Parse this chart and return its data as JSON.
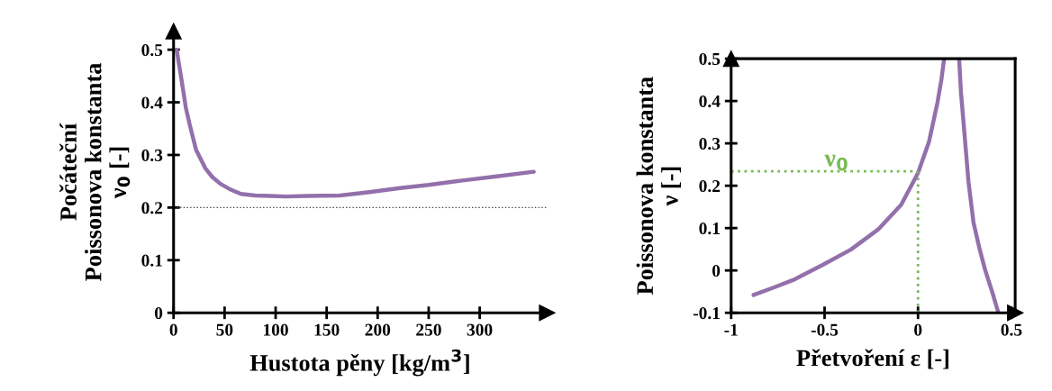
{
  "chart_data": [
    {
      "type": "line",
      "xlabel": "Hustota pěny [kg/m$^{3}$]",
      "ylabel": "Počáteční\nPoissonova konstanta\nν$_{0}$ [-]",
      "xlim": [
        0,
        366
      ],
      "ylim": [
        0,
        0.535
      ],
      "xticks": [
        0,
        50,
        100,
        150,
        200,
        250,
        300
      ],
      "yticks": [
        0,
        0.1,
        0.2,
        0.3,
        0.4,
        0.5
      ],
      "grid": false,
      "legend": false,
      "line_style": "solid",
      "marker": "none",
      "series": [
        {
          "color": "#9370ab",
          "x": [
            3,
            8,
            12,
            16,
            22,
            31,
            38,
            46,
            55,
            66,
            80,
            95,
            110,
            130,
            163,
            190,
            222,
            250,
            281,
            315,
            353
          ],
          "values": [
            0.5,
            0.44,
            0.39,
            0.356,
            0.31,
            0.275,
            0.258,
            0.245,
            0.235,
            0.226,
            0.223,
            0.222,
            0.221,
            0.222,
            0.223,
            0.229,
            0.237,
            0.243,
            0.251,
            0.259,
            0.268
          ]
        }
      ],
      "ref_lines": [
        {
          "axis": "y",
          "value": 0.2,
          "color": "#444444",
          "line_style": "dotted"
        }
      ]
    },
    {
      "type": "line",
      "xlabel": "Přetvoření ε [-]",
      "ylabel": "Poissonova konstanta\nν [-]",
      "xlim": [
        -1,
        0.52
      ],
      "ylim": [
        -0.1,
        0.5
      ],
      "xticks": [
        -1,
        -0.5,
        0,
        0.5
      ],
      "yticks": [
        -0.1,
        0,
        0.1,
        0.2,
        0.3,
        0.4,
        0.5
      ],
      "grid": false,
      "legend": false,
      "line_style": "solid",
      "marker": "none",
      "annotations": [
        {
          "text": "ν$_{0}$",
          "x": -0.5,
          "y": 0.234
        }
      ],
      "series": [
        {
          "color": "#9370ab",
          "x": [
            -0.88,
            -0.77,
            -0.66,
            -0.51,
            -0.36,
            -0.21,
            -0.09,
            0,
            0.059,
            0.104,
            0.125,
            0.14
          ],
          "values": [
            -0.058,
            -0.04,
            -0.021,
            0.013,
            0.049,
            0.098,
            0.155,
            0.23,
            0.304,
            0.396,
            0.45,
            0.5
          ]
        },
        {
          "color": "#9370ab",
          "x": [
            0.22,
            0.23,
            0.248,
            0.27,
            0.297,
            0.33,
            0.36,
            0.4,
            0.43
          ],
          "values": [
            0.5,
            0.42,
            0.326,
            0.21,
            0.113,
            0.05,
            0,
            -0.055,
            -0.1
          ]
        }
      ],
      "ref_lines": [
        {
          "axis": "y",
          "value": 0.234,
          "color": "#77bb55",
          "line_style": "dotted"
        },
        {
          "axis": "x",
          "value": 0,
          "color": "#77bb55",
          "line_style": "dotted"
        }
      ]
    }
  ]
}
